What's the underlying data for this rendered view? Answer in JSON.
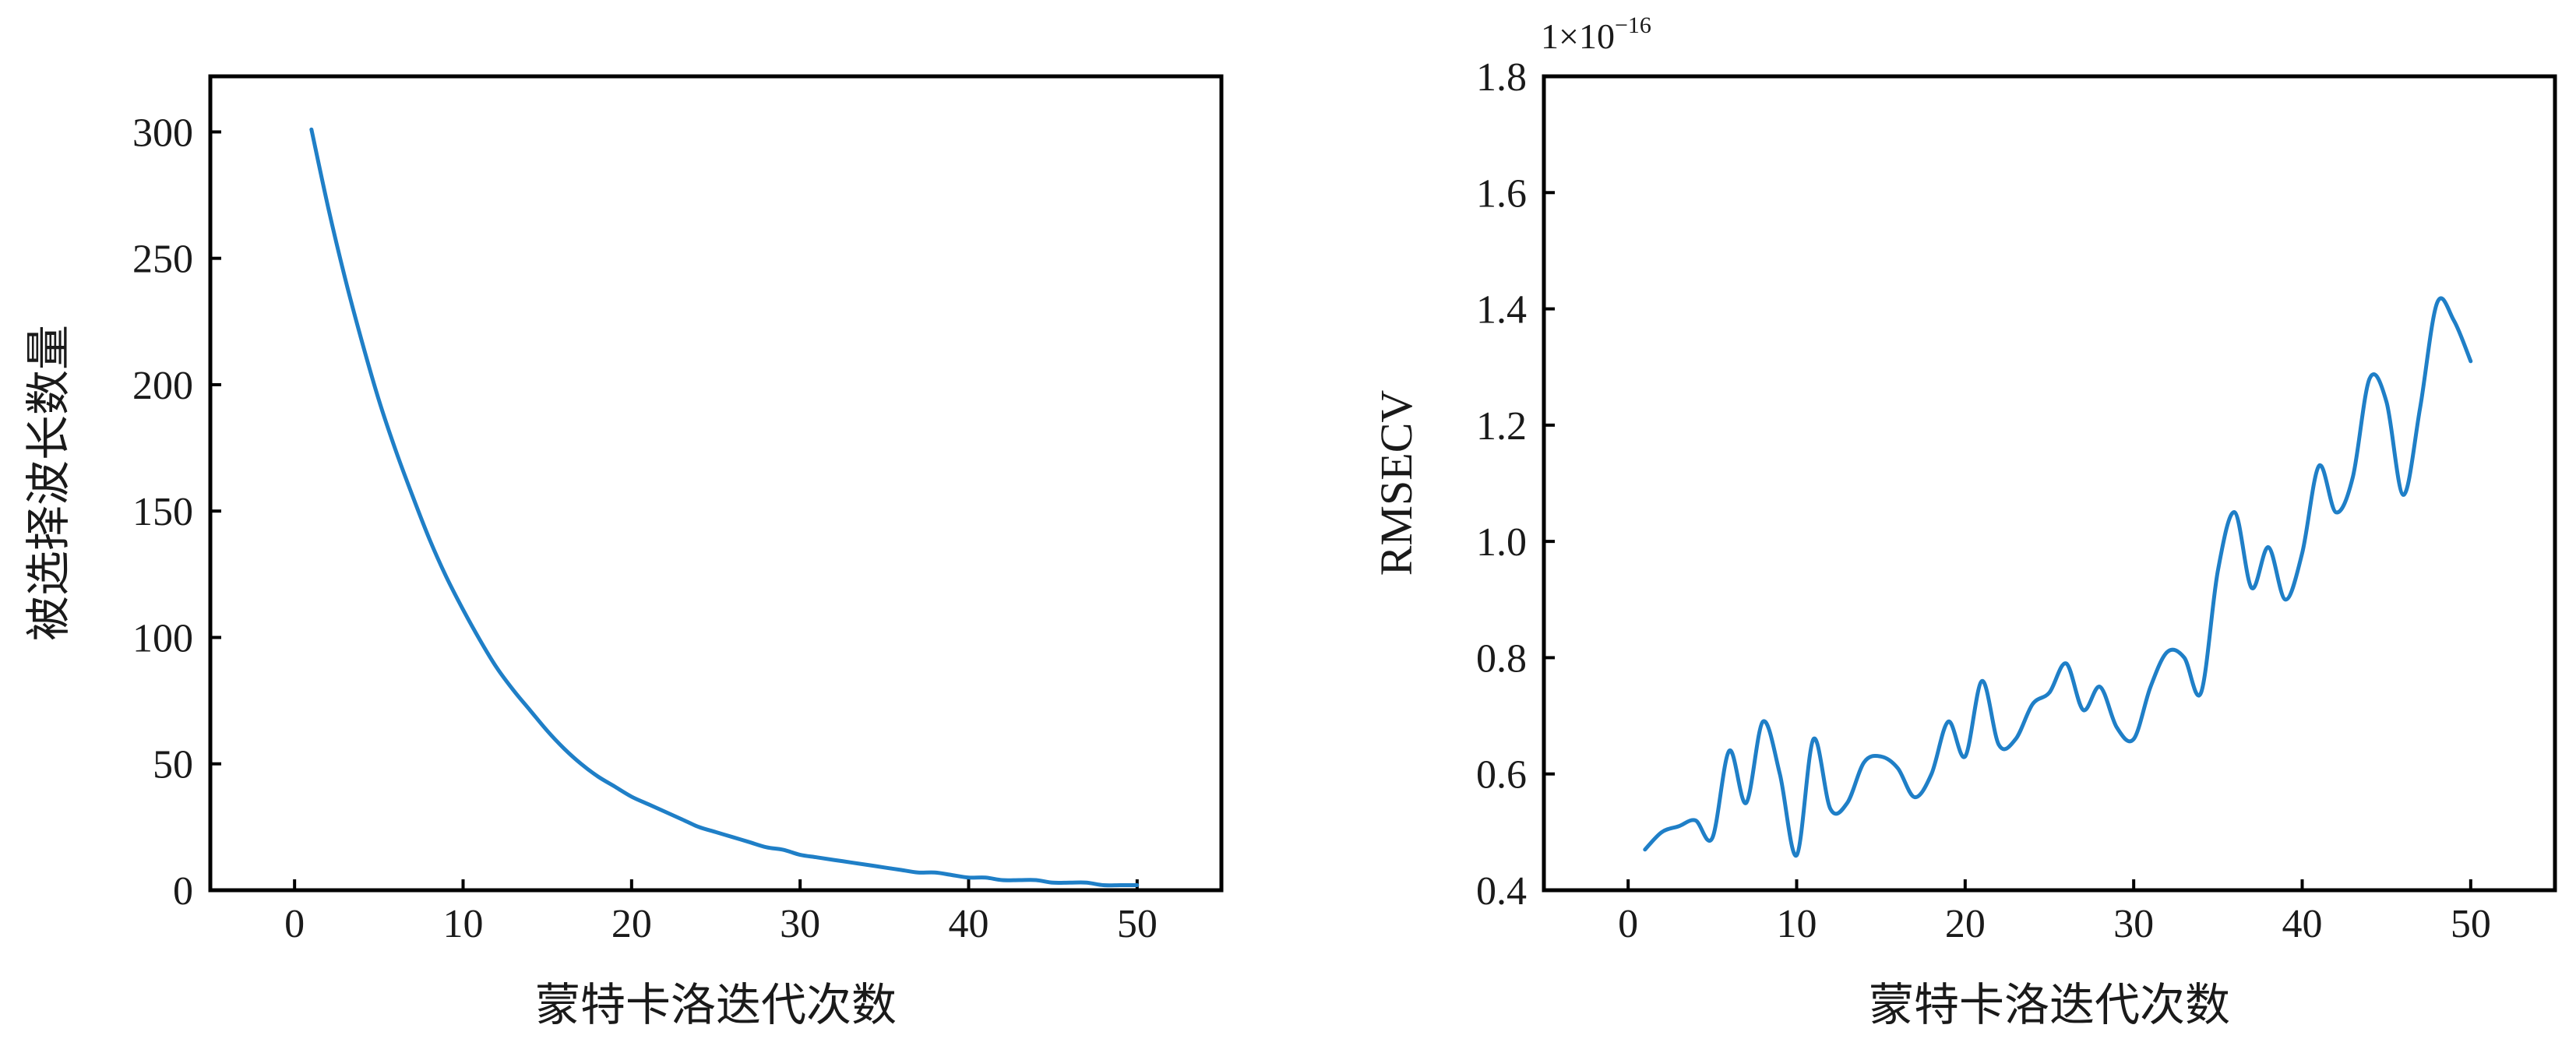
{
  "chart_data": [
    {
      "type": "line",
      "xlabel": "蒙特卡洛迭代次数",
      "ylabel": "被选择波长数量",
      "xlim": [
        -5,
        55
      ],
      "ylim": [
        0,
        322
      ],
      "xticks": [
        0,
        10,
        20,
        30,
        40,
        50
      ],
      "yticks": [
        0,
        50,
        100,
        150,
        200,
        250,
        300
      ],
      "grid": false,
      "color": "#1f7fc7",
      "series": [
        {
          "name": "",
          "x": [
            1,
            2,
            3,
            4,
            5,
            6,
            7,
            8,
            9,
            10,
            11,
            12,
            13,
            14,
            15,
            16,
            17,
            18,
            19,
            20,
            21,
            22,
            23,
            24,
            25,
            26,
            27,
            28,
            29,
            30,
            31,
            32,
            33,
            34,
            35,
            36,
            37,
            38,
            39,
            40,
            41,
            42,
            43,
            44,
            45,
            46,
            47,
            48,
            49,
            50
          ],
          "values": [
            301,
            270,
            242,
            217,
            194,
            174,
            156,
            139,
            124,
            111,
            99,
            88,
            79,
            71,
            63,
            56,
            50,
            45,
            41,
            37,
            34,
            31,
            28,
            25,
            23,
            21,
            19,
            17,
            16,
            14,
            13,
            12,
            11,
            10,
            9,
            8,
            7,
            7,
            6,
            5,
            5,
            4,
            4,
            4,
            3,
            3,
            3,
            2,
            2,
            2
          ]
        }
      ]
    },
    {
      "type": "line",
      "xlabel": "蒙特卡洛迭代次数",
      "ylabel": "RMSECV",
      "y_multiplier_base": "1×10",
      "y_multiplier_exp": "−16",
      "xlim": [
        -5,
        55
      ],
      "ylim": [
        0.4,
        1.8
      ],
      "xticks": [
        0,
        10,
        20,
        30,
        40,
        50
      ],
      "yticks": [
        0.4,
        0.6,
        0.8,
        1.0,
        1.2,
        1.4,
        1.6,
        1.8
      ],
      "ytick_labels": [
        "0.4",
        "0.6",
        "0.8",
        "1.0",
        "1.2",
        "1.4",
        "1.6",
        "1.8"
      ],
      "grid": false,
      "color": "#1f7fc7",
      "series": [
        {
          "name": "",
          "x": [
            1,
            2,
            3,
            4,
            5,
            6,
            7,
            8,
            9,
            10,
            11,
            12,
            13,
            14,
            15,
            16,
            17,
            18,
            19,
            20,
            21,
            22,
            23,
            24,
            25,
            26,
            27,
            28,
            29,
            30,
            31,
            32,
            33,
            34,
            35,
            36,
            37,
            38,
            39,
            40,
            41,
            42,
            43,
            44,
            45,
            46,
            47,
            48,
            49,
            50
          ],
          "values": [
            0.47,
            0.5,
            0.51,
            0.52,
            0.49,
            0.64,
            0.55,
            0.69,
            0.6,
            0.46,
            0.66,
            0.54,
            0.55,
            0.62,
            0.63,
            0.61,
            0.56,
            0.6,
            0.69,
            0.63,
            0.76,
            0.65,
            0.66,
            0.72,
            0.74,
            0.79,
            0.71,
            0.75,
            0.68,
            0.66,
            0.75,
            0.81,
            0.8,
            0.74,
            0.95,
            1.05,
            0.92,
            0.99,
            0.9,
            0.98,
            1.13,
            1.05,
            1.11,
            1.28,
            1.24,
            1.08,
            1.23,
            1.41,
            1.38,
            1.31
          ]
        }
      ]
    }
  ]
}
